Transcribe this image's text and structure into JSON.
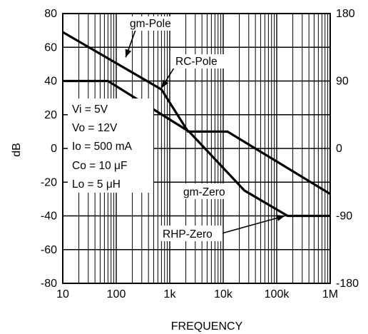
{
  "chart_data": {
    "type": "line",
    "xlabel": "FREQUENCY",
    "ylabel": "dB",
    "x_scale": "log",
    "xlim": [
      10,
      1000000
    ],
    "ylim": [
      -80,
      80
    ],
    "y2lim": [
      -180,
      180
    ],
    "grid": true,
    "x_ticks": [
      {
        "value": 10,
        "label": "10"
      },
      {
        "value": 100,
        "label": "100"
      },
      {
        "value": 1000,
        "label": "1k"
      },
      {
        "value": 10000,
        "label": "10k"
      },
      {
        "value": 100000,
        "label": "100k"
      },
      {
        "value": 1000000,
        "label": "1M"
      }
    ],
    "y_ticks": [
      {
        "value": 80,
        "label": "80"
      },
      {
        "value": 60,
        "label": "60"
      },
      {
        "value": 40,
        "label": "40"
      },
      {
        "value": 20,
        "label": "20"
      },
      {
        "value": 0,
        "label": "0"
      },
      {
        "value": -20,
        "label": "-20"
      },
      {
        "value": -40,
        "label": "-40"
      },
      {
        "value": -60,
        "label": "-60"
      },
      {
        "value": -80,
        "label": "-80"
      }
    ],
    "y2_ticks": [
      {
        "value": 180,
        "label": "180"
      },
      {
        "value": 90,
        "label": "90"
      },
      {
        "value": 0,
        "label": "0"
      },
      {
        "value": -90,
        "label": "-90"
      },
      {
        "value": -180,
        "label": "-180"
      }
    ],
    "series": [
      {
        "points": [
          [
            10,
            69
          ],
          [
            700,
            35
          ],
          [
            2200,
            10
          ],
          [
            12000,
            10
          ],
          [
            1000000,
            -27
          ]
        ]
      },
      {
        "points": [
          [
            10,
            40
          ],
          [
            70,
            40
          ],
          [
            2300,
            10
          ],
          [
            25000,
            -25
          ],
          [
            160000,
            -40
          ],
          [
            1000000,
            -40
          ]
        ]
      }
    ],
    "annotations": [
      {
        "text": "gm-Pole"
      },
      {
        "text": "RC-Pole"
      },
      {
        "text": "gm-Zero"
      },
      {
        "text": "RHP-Zero"
      }
    ],
    "conditions": [
      "Vi = 5V",
      "Vo = 12V",
      "Io = 500 mA",
      "Co = 10 μF",
      "Lo = 5 μH"
    ]
  }
}
